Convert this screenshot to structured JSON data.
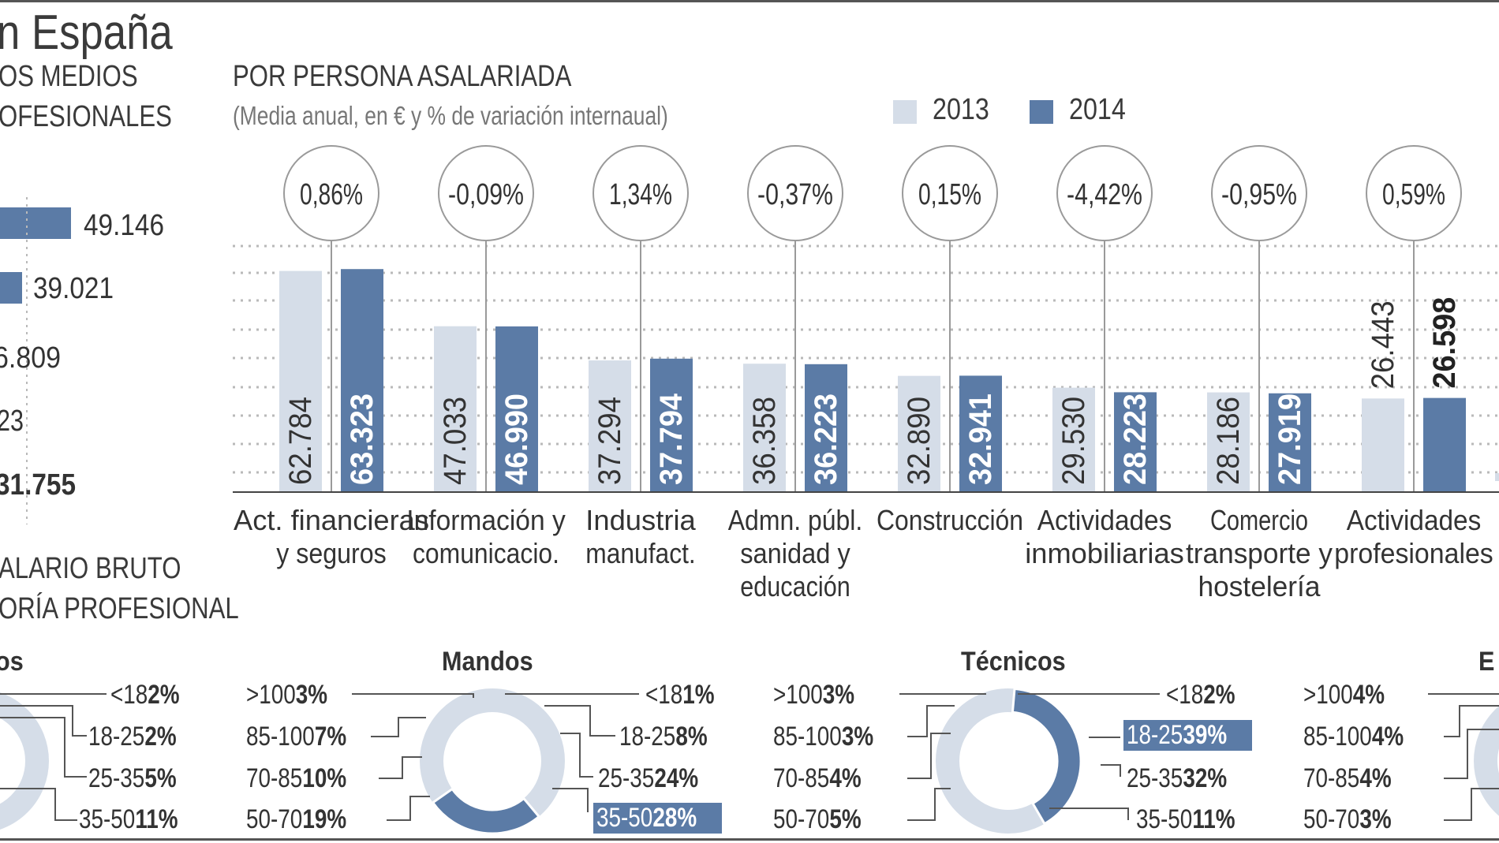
{
  "header": {
    "title": "n España",
    "left_heading_1": "OS MEDIOS",
    "left_heading_2": "OFESIONALES",
    "left_heading_3": "ALARIO BRUTO",
    "left_heading_4": "ORÍA PROFESIONAL"
  },
  "colors": {
    "y2013": "#d5dde8",
    "y2014": "#5b7ba6",
    "grid": "#b9b9b9",
    "circle": "#9a9a9a"
  },
  "left_bars": [
    {
      "label": "49.146",
      "value": 49146
    },
    {
      "label": "39.021",
      "value": 39021
    },
    {
      "label": "6.809",
      "value": null
    },
    {
      "label": "23",
      "value": null
    },
    {
      "label": "31.755",
      "value": null
    }
  ],
  "chart_data": {
    "type": "bar",
    "title": "POR PERSONA ASALARIADA",
    "subtitle": "(Media anual, en € y % de variación internaual)",
    "legend": [
      "2013",
      "2014"
    ],
    "legend_position": "top-right",
    "grid": true,
    "categories": [
      {
        "label1": "Act. financieras",
        "label2": "y seguros",
        "label3": ""
      },
      {
        "label1": "Información y",
        "label2": "comunicacio.",
        "label3": ""
      },
      {
        "label1": "Industria",
        "label2": "manufact.",
        "label3": ""
      },
      {
        "label1": "Admn. públ.",
        "label2": "sanidad y",
        "label3": "educación"
      },
      {
        "label1": "Construcción",
        "label2": "",
        "label3": ""
      },
      {
        "label1": "Actividades",
        "label2": "inmobiliarias",
        "label3": ""
      },
      {
        "label1": "Comercio",
        "label2": "transporte y",
        "label3": "hostelería"
      },
      {
        "label1": "Actividades",
        "label2": "profesionales",
        "label3": ""
      }
    ],
    "series": [
      {
        "name": "2013",
        "values": [
          62784,
          47033,
          37294,
          36358,
          32890,
          29530,
          28186,
          26443
        ],
        "labels": [
          "62.784",
          "47.033",
          "37.294",
          "36.358",
          "32.890",
          "29.530",
          "28.186",
          "26.443"
        ]
      },
      {
        "name": "2014",
        "values": [
          63323,
          46990,
          37794,
          36223,
          32941,
          28223,
          27919,
          26598
        ],
        "labels": [
          "63.323",
          "46.990",
          "37.794",
          "36.223",
          "32.941",
          "28.223",
          "27.919",
          "26.598"
        ]
      }
    ],
    "variation": [
      "0,86%",
      "-0,09%",
      "1,34%",
      "-0,37%",
      "0,15%",
      "-4,42%",
      "-0,95%",
      "0,59%"
    ]
  },
  "donuts": [
    {
      "title": "os",
      "right": [
        {
          "range": "<18",
          "pct": "2%"
        },
        {
          "range": "18-25",
          "pct": "2%"
        },
        {
          "range": "25-35",
          "pct": "5%"
        },
        {
          "range": "35-50",
          "pct": "11%"
        }
      ]
    },
    {
      "title": "Mandos",
      "left": [
        {
          "range": ">100",
          "pct": "3%"
        },
        {
          "range": "85-100",
          "pct": "7%"
        },
        {
          "range": "70-85",
          "pct": "10%"
        },
        {
          "range": "50-70",
          "pct": "19%"
        }
      ],
      "right": [
        {
          "range": "<18",
          "pct": "1%"
        },
        {
          "range": "18-25",
          "pct": "8%"
        },
        {
          "range": "25-35",
          "pct": "24%"
        },
        {
          "range": "35-50",
          "pct": "28%"
        }
      ]
    },
    {
      "title": "Técnicos",
      "left": [
        {
          "range": ">100",
          "pct": "3%"
        },
        {
          "range": "85-100",
          "pct": "3%"
        },
        {
          "range": "70-85",
          "pct": "4%"
        },
        {
          "range": "50-70",
          "pct": "5%"
        }
      ],
      "right": [
        {
          "range": "<18",
          "pct": "2%"
        },
        {
          "range": "18-25",
          "pct": "39%"
        },
        {
          "range": "25-35",
          "pct": "32%"
        },
        {
          "range": "35-50",
          "pct": "11%"
        }
      ]
    },
    {
      "title": "E",
      "left": [
        {
          "range": ">100",
          "pct": "4%"
        },
        {
          "range": "85-100",
          "pct": "4%"
        },
        {
          "range": "70-85",
          "pct": "4%"
        },
        {
          "range": "50-70",
          "pct": "3%"
        }
      ]
    }
  ]
}
